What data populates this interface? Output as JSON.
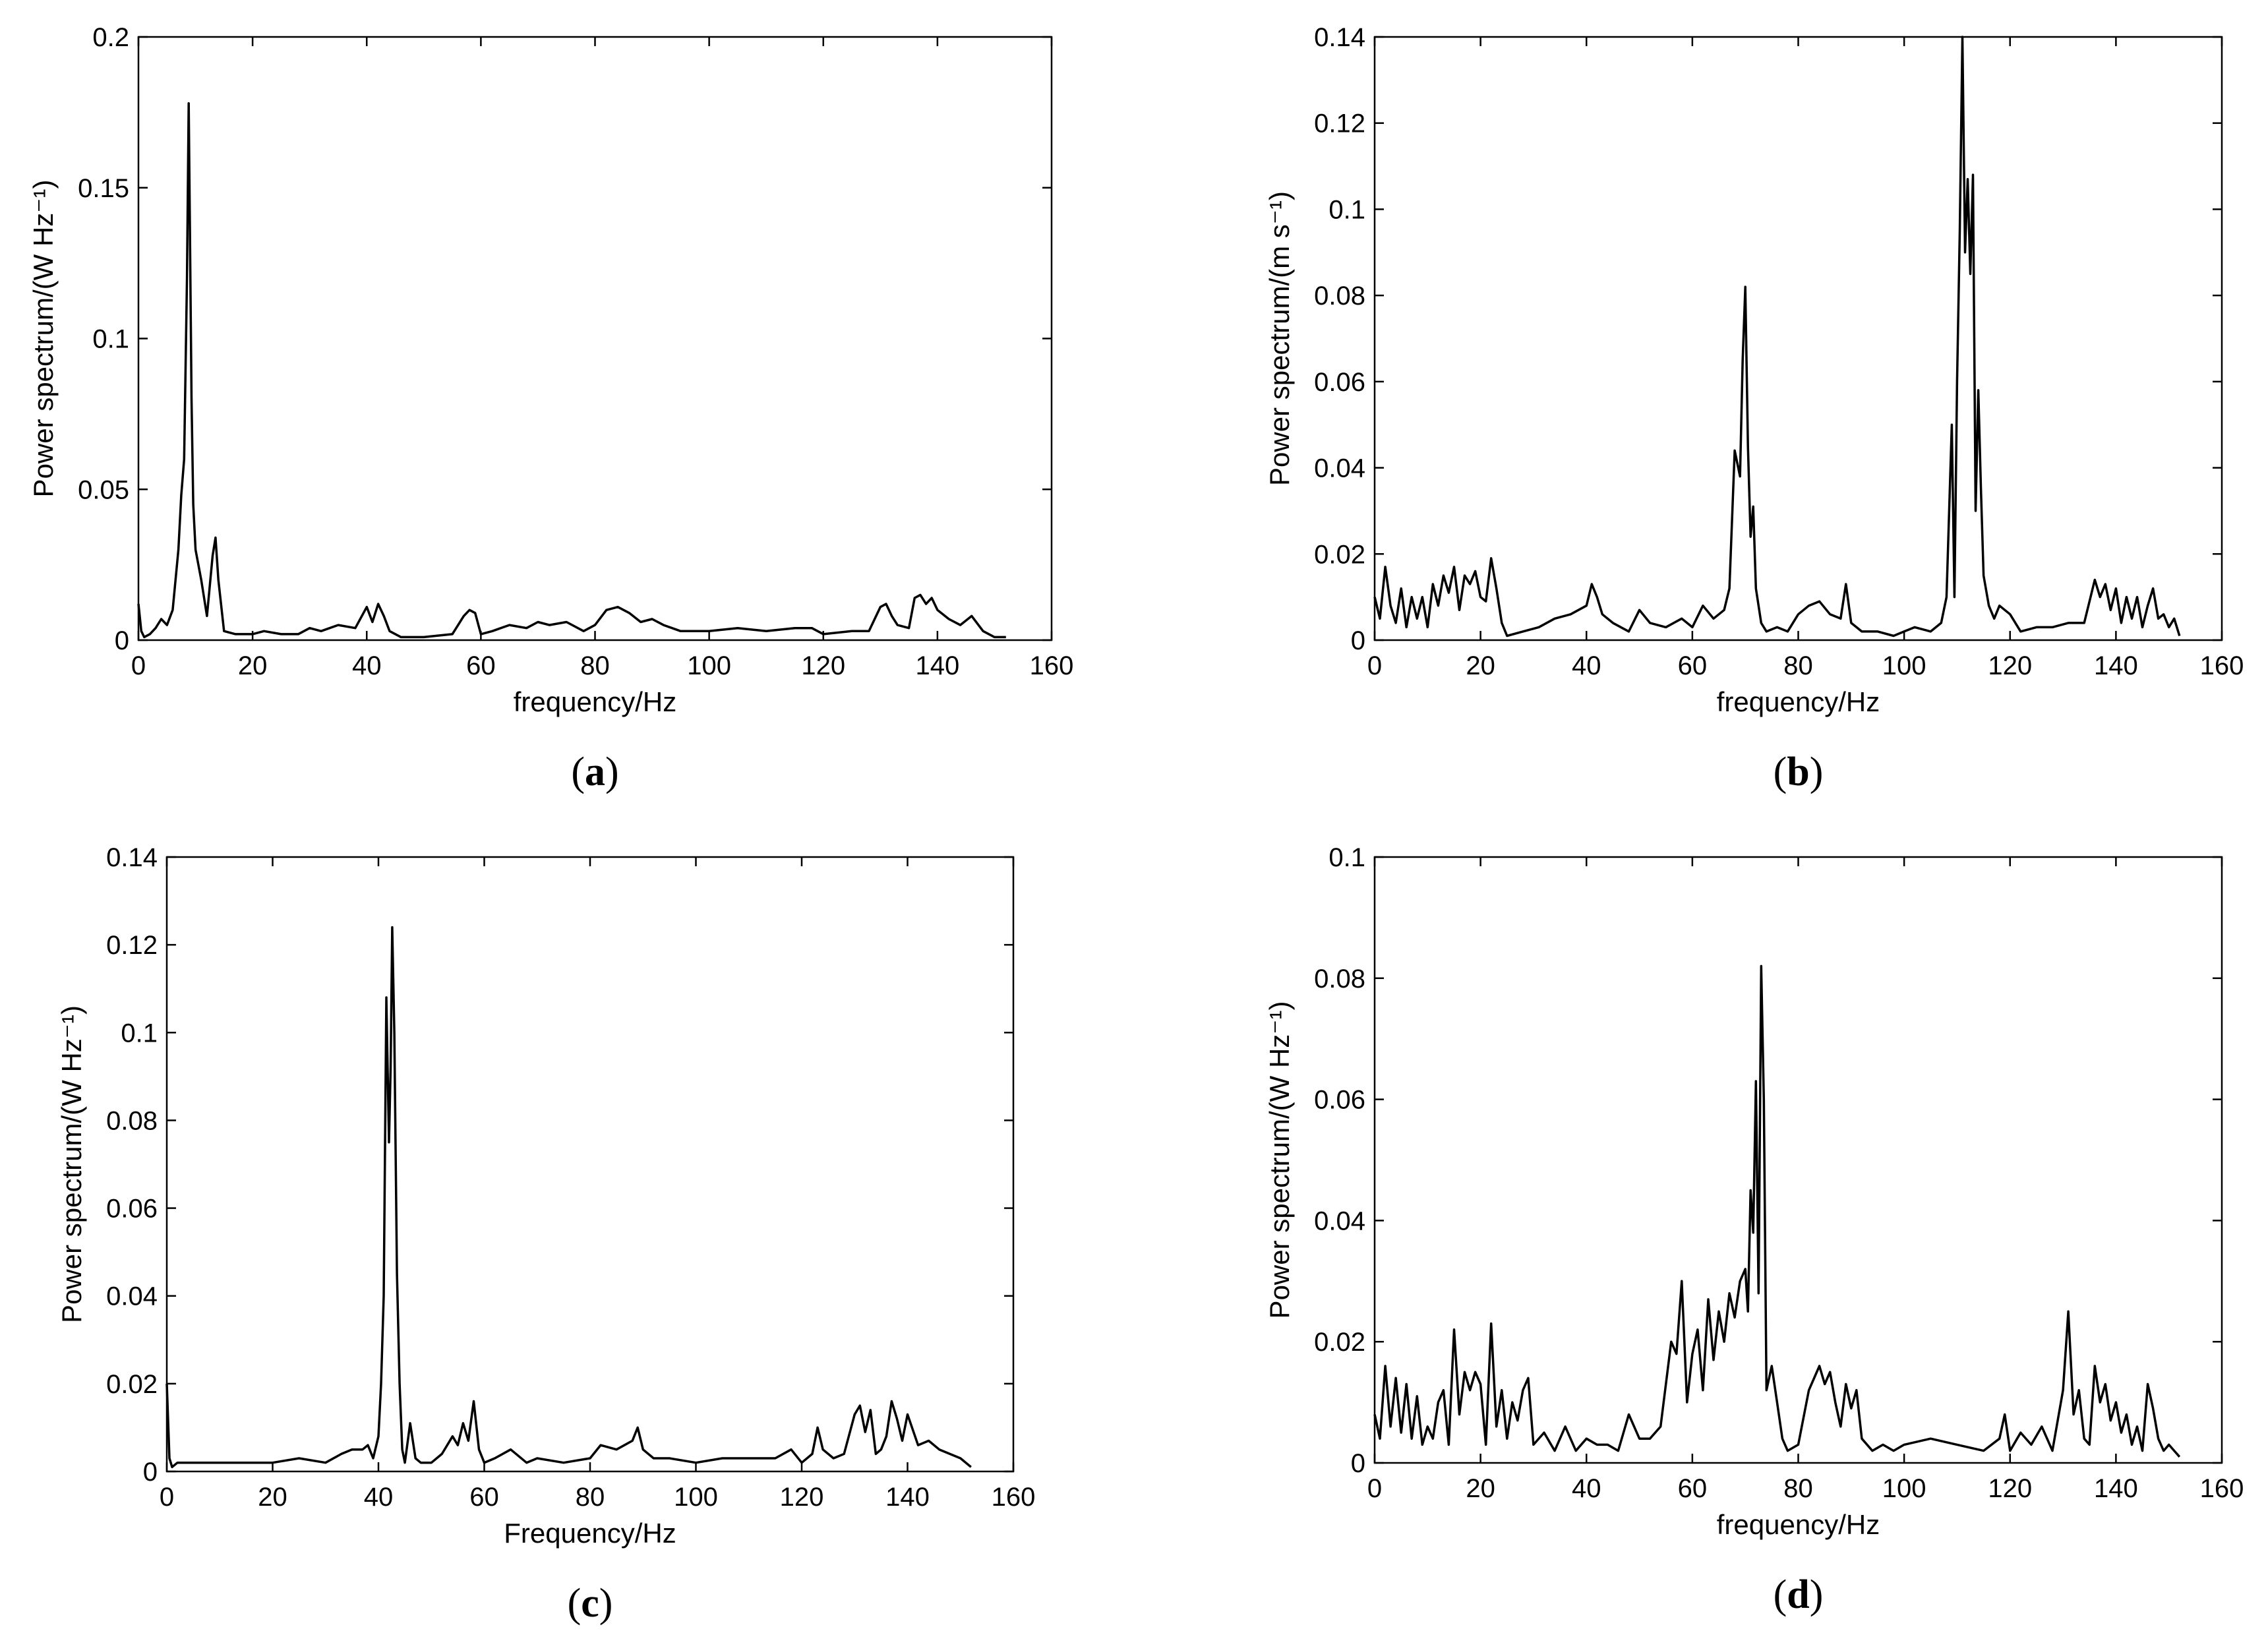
{
  "chart_data": [
    {
      "panel": "(a)",
      "type": "line",
      "xlabel": "frequency/Hz",
      "ylabel": "Power spectrum/(W Hz⁻¹)",
      "xlim": [
        0,
        160
      ],
      "ylim": [
        0,
        0.2
      ],
      "xticks": [
        0,
        20,
        40,
        60,
        80,
        100,
        120,
        140,
        160
      ],
      "yticks": [
        "0",
        "0.05",
        "0.1",
        "0.15",
        "0.2"
      ],
      "yticks_values": [
        0,
        0.05,
        0.1,
        0.15,
        0.2
      ],
      "grid": false,
      "x": [
        0,
        0.5,
        1,
        2,
        3,
        4,
        5,
        6,
        7,
        7.5,
        8,
        8.5,
        8.8,
        9,
        9.3,
        9.6,
        10,
        11,
        12,
        13,
        13.5,
        14,
        15,
        17,
        20,
        22,
        25,
        28,
        30,
        32,
        35,
        38,
        40,
        41,
        42,
        43,
        44,
        46,
        50,
        55,
        57,
        58,
        59,
        60,
        62,
        65,
        68,
        70,
        72,
        75,
        78,
        80,
        82,
        84,
        86,
        88,
        90,
        92,
        95,
        100,
        105,
        110,
        115,
        118,
        120,
        125,
        128,
        130,
        131,
        132,
        133,
        135,
        136,
        137,
        138,
        139,
        140,
        142,
        144,
        146,
        148,
        150,
        152
      ],
      "y": [
        0.012,
        0.003,
        0.001,
        0.002,
        0.004,
        0.007,
        0.005,
        0.01,
        0.03,
        0.048,
        0.06,
        0.12,
        0.178,
        0.14,
        0.08,
        0.045,
        0.03,
        0.02,
        0.008,
        0.028,
        0.034,
        0.02,
        0.003,
        0.002,
        0.002,
        0.003,
        0.002,
        0.002,
        0.004,
        0.003,
        0.005,
        0.004,
        0.011,
        0.006,
        0.012,
        0.008,
        0.003,
        0.001,
        0.001,
        0.002,
        0.008,
        0.01,
        0.009,
        0.002,
        0.003,
        0.005,
        0.004,
        0.006,
        0.005,
        0.006,
        0.003,
        0.005,
        0.01,
        0.011,
        0.009,
        0.006,
        0.007,
        0.005,
        0.003,
        0.003,
        0.004,
        0.003,
        0.004,
        0.004,
        0.002,
        0.003,
        0.003,
        0.011,
        0.012,
        0.008,
        0.005,
        0.004,
        0.014,
        0.015,
        0.012,
        0.014,
        0.01,
        0.007,
        0.005,
        0.008,
        0.003,
        0.001,
        0.001
      ]
    },
    {
      "panel": "(b)",
      "type": "line",
      "xlabel": "frequency/Hz",
      "ylabel": "Power spectrum/(m s⁻¹)",
      "xlim": [
        0,
        160
      ],
      "ylim": [
        0,
        0.14
      ],
      "xticks": [
        0,
        20,
        40,
        60,
        80,
        100,
        120,
        140,
        160
      ],
      "yticks": [
        "0",
        "0.02",
        "0.04",
        "0.06",
        "0.08",
        "0.1",
        "0.12",
        "0.14"
      ],
      "yticks_values": [
        0,
        0.02,
        0.04,
        0.06,
        0.08,
        0.1,
        0.12,
        0.14
      ],
      "grid": false,
      "x": [
        0,
        1,
        2,
        3,
        4,
        5,
        6,
        7,
        8,
        9,
        10,
        11,
        12,
        13,
        14,
        15,
        16,
        17,
        18,
        19,
        20,
        21,
        22,
        23,
        24,
        25,
        28,
        31,
        34,
        37,
        40,
        41,
        42,
        43,
        45,
        48,
        50,
        52,
        55,
        58,
        60,
        62,
        64,
        66,
        67,
        68,
        69,
        69.5,
        70,
        70.5,
        71,
        71.5,
        72,
        73,
        74,
        76,
        78,
        80,
        82,
        84,
        86,
        88,
        89,
        90,
        92,
        95,
        98,
        100,
        102,
        105,
        107,
        108,
        109,
        109.5,
        110,
        110.5,
        111,
        111.5,
        112,
        112.5,
        113,
        113.5,
        114,
        114.5,
        115,
        116,
        117,
        118,
        120,
        122,
        125,
        128,
        131,
        134,
        136,
        137,
        138,
        139,
        140,
        141,
        142,
        143,
        144,
        145,
        146,
        147,
        148,
        149,
        150,
        151,
        152
      ],
      "y": [
        0.01,
        0.005,
        0.017,
        0.008,
        0.004,
        0.012,
        0.003,
        0.01,
        0.005,
        0.01,
        0.003,
        0.013,
        0.008,
        0.015,
        0.011,
        0.017,
        0.007,
        0.015,
        0.013,
        0.016,
        0.01,
        0.009,
        0.019,
        0.012,
        0.004,
        0.001,
        0.002,
        0.003,
        0.005,
        0.006,
        0.008,
        0.013,
        0.01,
        0.006,
        0.004,
        0.002,
        0.007,
        0.004,
        0.003,
        0.005,
        0.003,
        0.008,
        0.005,
        0.007,
        0.012,
        0.044,
        0.038,
        0.065,
        0.082,
        0.045,
        0.024,
        0.031,
        0.012,
        0.004,
        0.002,
        0.003,
        0.002,
        0.006,
        0.008,
        0.009,
        0.006,
        0.005,
        0.013,
        0.004,
        0.002,
        0.002,
        0.001,
        0.002,
        0.003,
        0.002,
        0.004,
        0.01,
        0.05,
        0.01,
        0.06,
        0.095,
        0.14,
        0.09,
        0.107,
        0.085,
        0.108,
        0.03,
        0.058,
        0.035,
        0.015,
        0.008,
        0.005,
        0.008,
        0.006,
        0.002,
        0.003,
        0.003,
        0.004,
        0.004,
        0.014,
        0.01,
        0.013,
        0.007,
        0.012,
        0.004,
        0.01,
        0.005,
        0.01,
        0.003,
        0.008,
        0.012,
        0.005,
        0.006,
        0.003,
        0.005,
        0.001
      ]
    },
    {
      "panel": "(c)",
      "type": "line",
      "xlabel": "Frequency/Hz",
      "ylabel": "Power spectrum/(W Hz⁻¹)",
      "xlim": [
        0,
        160
      ],
      "ylim": [
        0,
        0.14
      ],
      "xticks": [
        0,
        20,
        40,
        60,
        80,
        100,
        120,
        140,
        160
      ],
      "yticks": [
        "0",
        "0.02",
        "0.04",
        "0.06",
        "0.08",
        "0.1",
        "0.12",
        "0.14"
      ],
      "yticks_values": [
        0,
        0.02,
        0.04,
        0.06,
        0.08,
        0.1,
        0.12,
        0.14
      ],
      "grid": false,
      "x": [
        0,
        0.5,
        1,
        2,
        5,
        10,
        15,
        20,
        25,
        30,
        33,
        35,
        37,
        38,
        39,
        40,
        40.5,
        41,
        41.5,
        42,
        42.3,
        42.6,
        43,
        43.5,
        44,
        44.5,
        45,
        46,
        47,
        48,
        50,
        52,
        54,
        55,
        56,
        57,
        58,
        59,
        60,
        62,
        65,
        68,
        70,
        75,
        80,
        82,
        85,
        88,
        89,
        90,
        92,
        95,
        100,
        105,
        110,
        115,
        118,
        120,
        122,
        123,
        124,
        126,
        128,
        130,
        131,
        132,
        133,
        134,
        135,
        136,
        137,
        138,
        139,
        140,
        142,
        144,
        146,
        148,
        150,
        152
      ],
      "y": [
        0.02,
        0.003,
        0.001,
        0.002,
        0.002,
        0.002,
        0.002,
        0.002,
        0.003,
        0.002,
        0.004,
        0.005,
        0.005,
        0.006,
        0.003,
        0.008,
        0.02,
        0.04,
        0.108,
        0.075,
        0.092,
        0.124,
        0.1,
        0.045,
        0.02,
        0.005,
        0.002,
        0.011,
        0.003,
        0.002,
        0.002,
        0.004,
        0.008,
        0.006,
        0.011,
        0.007,
        0.016,
        0.005,
        0.002,
        0.003,
        0.005,
        0.002,
        0.003,
        0.002,
        0.003,
        0.006,
        0.005,
        0.007,
        0.01,
        0.005,
        0.003,
        0.003,
        0.002,
        0.003,
        0.003,
        0.003,
        0.005,
        0.002,
        0.004,
        0.01,
        0.005,
        0.003,
        0.004,
        0.013,
        0.015,
        0.009,
        0.014,
        0.004,
        0.005,
        0.008,
        0.016,
        0.012,
        0.007,
        0.013,
        0.006,
        0.007,
        0.005,
        0.004,
        0.003,
        0.001
      ]
    },
    {
      "panel": "(d)",
      "type": "line",
      "xlabel": "frequency/Hz",
      "ylabel": "Power spectrum/(W Hz⁻¹)",
      "xlim": [
        0,
        160
      ],
      "ylim": [
        0,
        0.1
      ],
      "xticks": [
        0,
        20,
        40,
        60,
        80,
        100,
        120,
        140,
        160
      ],
      "yticks": [
        "0",
        "0.02",
        "0.04",
        "0.06",
        "0.08",
        "0.1"
      ],
      "yticks_values": [
        0,
        0.02,
        0.04,
        0.06,
        0.08,
        0.1
      ],
      "grid": false,
      "x": [
        0,
        1,
        2,
        3,
        4,
        5,
        6,
        7,
        8,
        9,
        10,
        11,
        12,
        13,
        14,
        15,
        16,
        17,
        18,
        19,
        20,
        21,
        22,
        23,
        24,
        25,
        26,
        27,
        28,
        29,
        30,
        32,
        34,
        36,
        38,
        40,
        42,
        44,
        46,
        48,
        50,
        52,
        54,
        56,
        57,
        58,
        59,
        60,
        61,
        62,
        63,
        64,
        65,
        66,
        67,
        68,
        69,
        70,
        70.5,
        71,
        71.5,
        72,
        72.5,
        73,
        73.5,
        74,
        75,
        76,
        77,
        78,
        80,
        82,
        84,
        85,
        86,
        87,
        88,
        89,
        90,
        91,
        92,
        94,
        96,
        98,
        100,
        105,
        110,
        115,
        118,
        119,
        120,
        122,
        124,
        126,
        128,
        130,
        131,
        132,
        133,
        134,
        135,
        136,
        137,
        138,
        139,
        140,
        141,
        142,
        143,
        144,
        145,
        146,
        147,
        148,
        149,
        150,
        152
      ],
      "y": [
        0.008,
        0.004,
        0.016,
        0.006,
        0.014,
        0.005,
        0.013,
        0.004,
        0.011,
        0.003,
        0.006,
        0.004,
        0.01,
        0.012,
        0.003,
        0.022,
        0.008,
        0.015,
        0.012,
        0.015,
        0.013,
        0.003,
        0.023,
        0.006,
        0.012,
        0.004,
        0.01,
        0.007,
        0.012,
        0.014,
        0.003,
        0.005,
        0.002,
        0.006,
        0.002,
        0.004,
        0.003,
        0.003,
        0.002,
        0.008,
        0.004,
        0.004,
        0.006,
        0.02,
        0.018,
        0.03,
        0.01,
        0.018,
        0.022,
        0.012,
        0.027,
        0.017,
        0.025,
        0.02,
        0.028,
        0.024,
        0.03,
        0.032,
        0.025,
        0.045,
        0.038,
        0.063,
        0.028,
        0.082,
        0.06,
        0.012,
        0.016,
        0.01,
        0.004,
        0.002,
        0.003,
        0.012,
        0.016,
        0.013,
        0.015,
        0.01,
        0.006,
        0.013,
        0.009,
        0.012,
        0.004,
        0.002,
        0.003,
        0.002,
        0.003,
        0.004,
        0.003,
        0.002,
        0.004,
        0.008,
        0.002,
        0.005,
        0.003,
        0.006,
        0.002,
        0.012,
        0.025,
        0.008,
        0.012,
        0.004,
        0.003,
        0.016,
        0.01,
        0.013,
        0.007,
        0.01,
        0.005,
        0.008,
        0.003,
        0.006,
        0.002,
        0.013,
        0.009,
        0.004,
        0.002,
        0.003,
        0.001
      ]
    }
  ]
}
